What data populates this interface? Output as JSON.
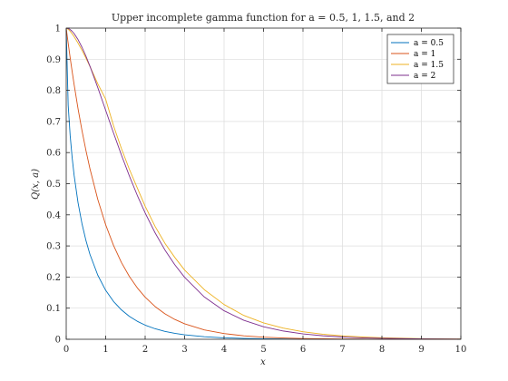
{
  "chart_data": {
    "type": "line",
    "title": "Upper incomplete gamma function for a = 0.5, 1, 1.5, and 2",
    "xlabel": "x",
    "ylabel": "Q(x, a)",
    "xlim": [
      0,
      10
    ],
    "ylim": [
      0,
      1
    ],
    "xticks": [
      "0",
      "1",
      "2",
      "3",
      "4",
      "5",
      "6",
      "7",
      "8",
      "9",
      "10"
    ],
    "yticks": [
      "0",
      "0.1",
      "0.2",
      "0.3",
      "0.4",
      "0.5",
      "0.6",
      "0.7",
      "0.8",
      "0.9",
      "1"
    ],
    "grid": true,
    "legend_position": "top-right",
    "x": [
      0,
      0.05,
      0.1,
      0.15,
      0.2,
      0.3,
      0.4,
      0.5,
      0.6,
      0.8,
      1,
      1.2,
      1.4,
      1.6,
      1.8,
      2,
      2.25,
      2.5,
      2.75,
      3,
      3.5,
      4,
      4.5,
      5,
      5.5,
      6,
      6.5,
      7,
      7.5,
      8,
      9,
      10
    ],
    "series": [
      {
        "name": "a = 0.5",
        "color": "#0072BD",
        "values": [
          1,
          0.7518,
          0.6547,
          0.5839,
          0.5271,
          0.4386,
          0.3711,
          0.3173,
          0.2733,
          0.2059,
          0.1573,
          0.1213,
          0.0943,
          0.0736,
          0.0578,
          0.0455,
          0.0339,
          0.0254,
          0.019,
          0.0143,
          0.0081,
          0.0047,
          0.0027,
          0.0016,
          0.0009,
          0.0005,
          0.0003,
          0.0002,
          0.0001,
          0.0001,
          0,
          0
        ]
      },
      {
        "name": "a = 1",
        "color": "#D95319",
        "values": [
          1,
          0.9512,
          0.9048,
          0.8607,
          0.8187,
          0.7408,
          0.6703,
          0.6065,
          0.5488,
          0.4493,
          0.3679,
          0.3012,
          0.2466,
          0.2019,
          0.1653,
          0.1353,
          0.1054,
          0.0821,
          0.0639,
          0.0498,
          0.0302,
          0.0183,
          0.0111,
          0.0067,
          0.0041,
          0.0025,
          0.0015,
          0.0009,
          0.0006,
          0.0003,
          0.0001,
          0
        ]
      },
      {
        "name": "a = 1.5",
        "color": "#EDB120",
        "values": [
          1,
          0.9964,
          0.9898,
          0.9817,
          0.9725,
          0.9518,
          0.9287,
          0.9037,
          0.8772,
          0.8208,
          0.7716,
          0.6859,
          0.6126,
          0.5463,
          0.4867,
          0.4276,
          0.3632,
          0.3088,
          0.2633,
          0.2225,
          0.1593,
          0.1117,
          0.0766,
          0.0527,
          0.0358,
          0.0242,
          0.0162,
          0.0109,
          0.0073,
          0.0048,
          0.0021,
          0.0009
        ]
      },
      {
        "name": "a = 2",
        "color": "#7E2F8E",
        "values": [
          1,
          0.9988,
          0.9953,
          0.9898,
          0.9825,
          0.9631,
          0.9384,
          0.9098,
          0.8781,
          0.8088,
          0.7358,
          0.6626,
          0.5918,
          0.5249,
          0.4628,
          0.406,
          0.3425,
          0.2873,
          0.2397,
          0.1991,
          0.1359,
          0.0916,
          0.0611,
          0.0404,
          0.0266,
          0.0174,
          0.0113,
          0.0073,
          0.0047,
          0.003,
          0.0012,
          0.0005
        ]
      }
    ]
  }
}
